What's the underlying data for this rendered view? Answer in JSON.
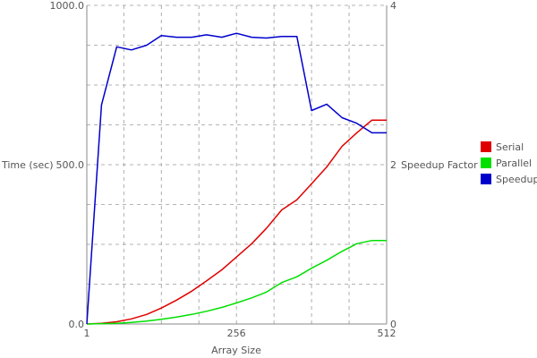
{
  "chart_data": {
    "type": "line",
    "title": "",
    "xlabel": "Array Size",
    "ylabel": "Time (sec)",
    "y2label": "Speedup Factor",
    "xlim": [
      1,
      512
    ],
    "ylim": [
      0,
      1000
    ],
    "y2lim": [
      0,
      4
    ],
    "x_ticks": [
      {
        "value": 1,
        "label": "1"
      },
      {
        "value": 256,
        "label": "256"
      },
      {
        "value": 512,
        "label": "512"
      }
    ],
    "y_ticks": [
      {
        "value": 0,
        "label": "0.0"
      },
      {
        "value": 500,
        "label": "500.0"
      },
      {
        "value": 1000,
        "label": "1000.0"
      }
    ],
    "y2_ticks": [
      {
        "value": 0,
        "label": "0"
      },
      {
        "value": 2,
        "label": "2"
      },
      {
        "value": 4,
        "label": "4"
      }
    ],
    "grid": true,
    "grid_x": [
      1,
      64,
      128,
      192,
      256,
      320,
      384,
      448,
      512
    ],
    "grid_y2": [
      0,
      0.5,
      1,
      1.5,
      2,
      2.5,
      3,
      3.5,
      4
    ],
    "legend_position": "right",
    "x": [
      1,
      26,
      52,
      77,
      103,
      128,
      154,
      180,
      205,
      231,
      256,
      282,
      307,
      333,
      359,
      384,
      410,
      436,
      461,
      487,
      512
    ],
    "series": [
      {
        "name": "Serial",
        "axis": "left",
        "color": "#e00000",
        "values": [
          0,
          2,
          7,
          16,
          30,
          50,
          75,
          103,
          135,
          170,
          210,
          252,
          300,
          358,
          390,
          440,
          493,
          558,
          600,
          640,
          640
        ]
      },
      {
        "name": "Parallel",
        "axis": "left",
        "color": "#00e000",
        "values": [
          0,
          1,
          2,
          5,
          9,
          15,
          22,
          30,
          40,
          52,
          66,
          82,
          100,
          130,
          148,
          175,
          200,
          228,
          252,
          262,
          262
        ]
      },
      {
        "name": "Speedup",
        "axis": "right",
        "color": "#0000cc",
        "values": [
          0,
          2.75,
          3.48,
          3.44,
          3.5,
          3.62,
          3.6,
          3.6,
          3.63,
          3.6,
          3.65,
          3.6,
          3.59,
          3.61,
          3.61,
          2.68,
          2.76,
          2.59,
          2.52,
          2.4,
          2.4
        ]
      }
    ]
  }
}
